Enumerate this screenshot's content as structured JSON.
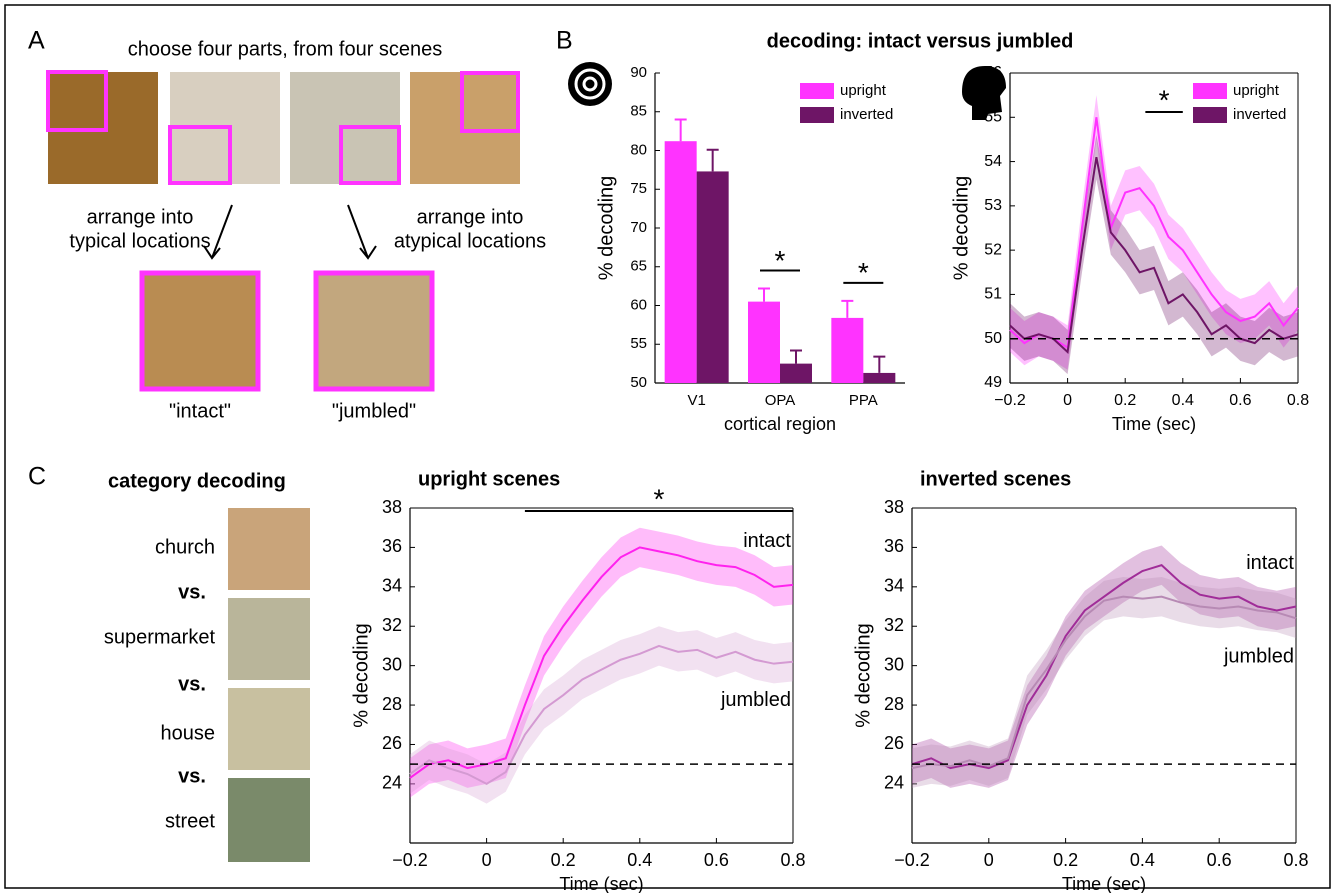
{
  "panel_labels": [
    "A",
    "B",
    "C"
  ],
  "panel_a": {
    "instruction": "choose four parts, from four scenes",
    "left_arrow_label": [
      "arrange into",
      "typical locations"
    ],
    "right_arrow_label": [
      "arrange into",
      "atypical locations"
    ],
    "left_result": "\"intact\"",
    "right_result": "\"jumbled\""
  },
  "panel_b_title": "decoding: intact versus jumbled",
  "panel_c_left": {
    "title": "category decoding",
    "items": [
      "church",
      "vs.",
      "supermarket",
      "vs.",
      "house",
      "vs.",
      "street"
    ]
  },
  "chart_data": [
    {
      "type": "bar",
      "xlabel": "cortical region",
      "ylabel": "% decoding",
      "categories": [
        "V1",
        "OPA",
        "PPA"
      ],
      "series": [
        {
          "name": "upright",
          "color": "#ff33ff",
          "values": [
            81.2,
            60.5,
            58.4
          ],
          "errors": [
            2.8,
            1.7,
            2.2
          ]
        },
        {
          "name": "inverted",
          "color": "#6e1566",
          "values": [
            77.3,
            52.5,
            51.3
          ],
          "errors": [
            2.8,
            1.7,
            2.1
          ]
        }
      ],
      "ylim": [
        50,
        90
      ],
      "yticks": [
        50,
        55,
        60,
        65,
        70,
        75,
        80,
        85,
        90
      ],
      "legend": "upper right",
      "significance": [
        {
          "category": "OPA",
          "label": "*"
        },
        {
          "category": "PPA",
          "label": "*"
        }
      ]
    },
    {
      "type": "line",
      "xlabel": "Time (sec)",
      "ylabel": "% decoding",
      "x": [
        -0.2,
        -0.15,
        -0.1,
        -0.05,
        0,
        0.05,
        0.1,
        0.15,
        0.2,
        0.25,
        0.3,
        0.35,
        0.4,
        0.45,
        0.5,
        0.55,
        0.6,
        0.65,
        0.7,
        0.75,
        0.8
      ],
      "series": [
        {
          "name": "upright",
          "color": "#ff33ff",
          "sem": 0.5,
          "values": [
            50.2,
            49.9,
            50.1,
            50,
            49.8,
            52.5,
            55,
            52.5,
            53.3,
            53.4,
            53,
            52.3,
            52,
            51.5,
            51,
            50.6,
            50.4,
            50.5,
            50.8,
            50.3,
            50.7
          ]
        },
        {
          "name": "inverted",
          "color": "#6e1566",
          "sem": 0.5,
          "values": [
            50.3,
            50,
            50.1,
            50,
            49.7,
            52,
            54.1,
            52.4,
            52,
            51.5,
            51.6,
            50.8,
            51,
            50.6,
            50.1,
            50.3,
            50,
            49.9,
            50.2,
            50,
            50.1
          ]
        }
      ],
      "xlim": [
        -0.2,
        0.8
      ],
      "xticks": [
        {
          "value": -0.2,
          "label": "−0.2"
        },
        0,
        0.2,
        0.4,
        0.6,
        0.8
      ],
      "ylim": [
        49,
        56
      ],
      "yticks": [
        49,
        50,
        51,
        52,
        53,
        54,
        55,
        56
      ],
      "chance": 50,
      "legend": "upper right",
      "significance": [
        {
          "xrange": [
            0.27,
            0.4
          ],
          "label": "*"
        }
      ]
    },
    {
      "type": "line",
      "title": "upright scenes",
      "xlabel": "Time (sec)",
      "ylabel": "% decoding",
      "x": [
        -0.2,
        -0.15,
        -0.1,
        -0.05,
        0,
        0.05,
        0.1,
        0.15,
        0.2,
        0.25,
        0.3,
        0.35,
        0.4,
        0.45,
        0.5,
        0.55,
        0.6,
        0.65,
        0.7,
        0.75,
        0.8
      ],
      "series": [
        {
          "name": "intact",
          "color": "#ff22ee",
          "sem": 1,
          "values": [
            24.3,
            25,
            25.2,
            24.8,
            25,
            25.3,
            28,
            30.5,
            32,
            33.3,
            34.5,
            35.5,
            36,
            35.8,
            35.6,
            35.3,
            35.1,
            35,
            34.6,
            34,
            34.1
          ]
        },
        {
          "name": "jumbled",
          "color": "#d49ad2",
          "sem": 1,
          "values": [
            24.5,
            25.2,
            24.8,
            24.5,
            24,
            24.6,
            26.5,
            27.8,
            28.5,
            29.3,
            29.8,
            30.3,
            30.6,
            31,
            30.7,
            30.8,
            30.4,
            30.7,
            30.3,
            30.1,
            30.2
          ]
        }
      ],
      "xlim": [
        -0.2,
        0.8
      ],
      "xticks": [
        {
          "value": -0.2,
          "label": "−0.2"
        },
        0,
        0.2,
        0.4,
        0.6,
        0.8
      ],
      "ylim": [
        21,
        38
      ],
      "yticks": [
        24,
        26,
        28,
        30,
        32,
        34,
        36,
        38
      ],
      "chance": 25,
      "legend": "inline",
      "significance": [
        {
          "xrange": [
            0.1,
            0.8
          ],
          "label": "*"
        }
      ]
    },
    {
      "type": "line",
      "title": "inverted scenes",
      "xlabel": "Time (sec)",
      "ylabel": "% decoding",
      "x": [
        -0.2,
        -0.15,
        -0.1,
        -0.05,
        0,
        0.05,
        0.1,
        0.15,
        0.2,
        0.25,
        0.3,
        0.35,
        0.4,
        0.45,
        0.5,
        0.55,
        0.6,
        0.65,
        0.7,
        0.75,
        0.8
      ],
      "series": [
        {
          "name": "intact",
          "color": "#a02d98",
          "sem": 1,
          "values": [
            25,
            25.3,
            24.8,
            25,
            24.8,
            25.2,
            28,
            29.5,
            31.5,
            32.8,
            33.5,
            34.2,
            34.8,
            35.1,
            34.2,
            33.6,
            33.4,
            33.5,
            33,
            32.8,
            33
          ]
        },
        {
          "name": "jumbled",
          "color": "#b78ab4",
          "sem": 1,
          "values": [
            24.8,
            25,
            24.9,
            25.2,
            24.9,
            25.3,
            28.5,
            29.8,
            31.3,
            32.5,
            33.3,
            33.5,
            33.4,
            33.5,
            33.2,
            33,
            32.9,
            33,
            32.8,
            32.7,
            32.4
          ]
        }
      ],
      "xlim": [
        -0.2,
        0.8
      ],
      "xticks": [
        {
          "value": -0.2,
          "label": "−0.2"
        },
        0,
        0.2,
        0.4,
        0.6,
        0.8
      ],
      "ylim": [
        21,
        38
      ],
      "yticks": [
        24,
        26,
        28,
        30,
        32,
        34,
        36,
        38
      ],
      "chance": 25,
      "legend": "inline"
    }
  ]
}
